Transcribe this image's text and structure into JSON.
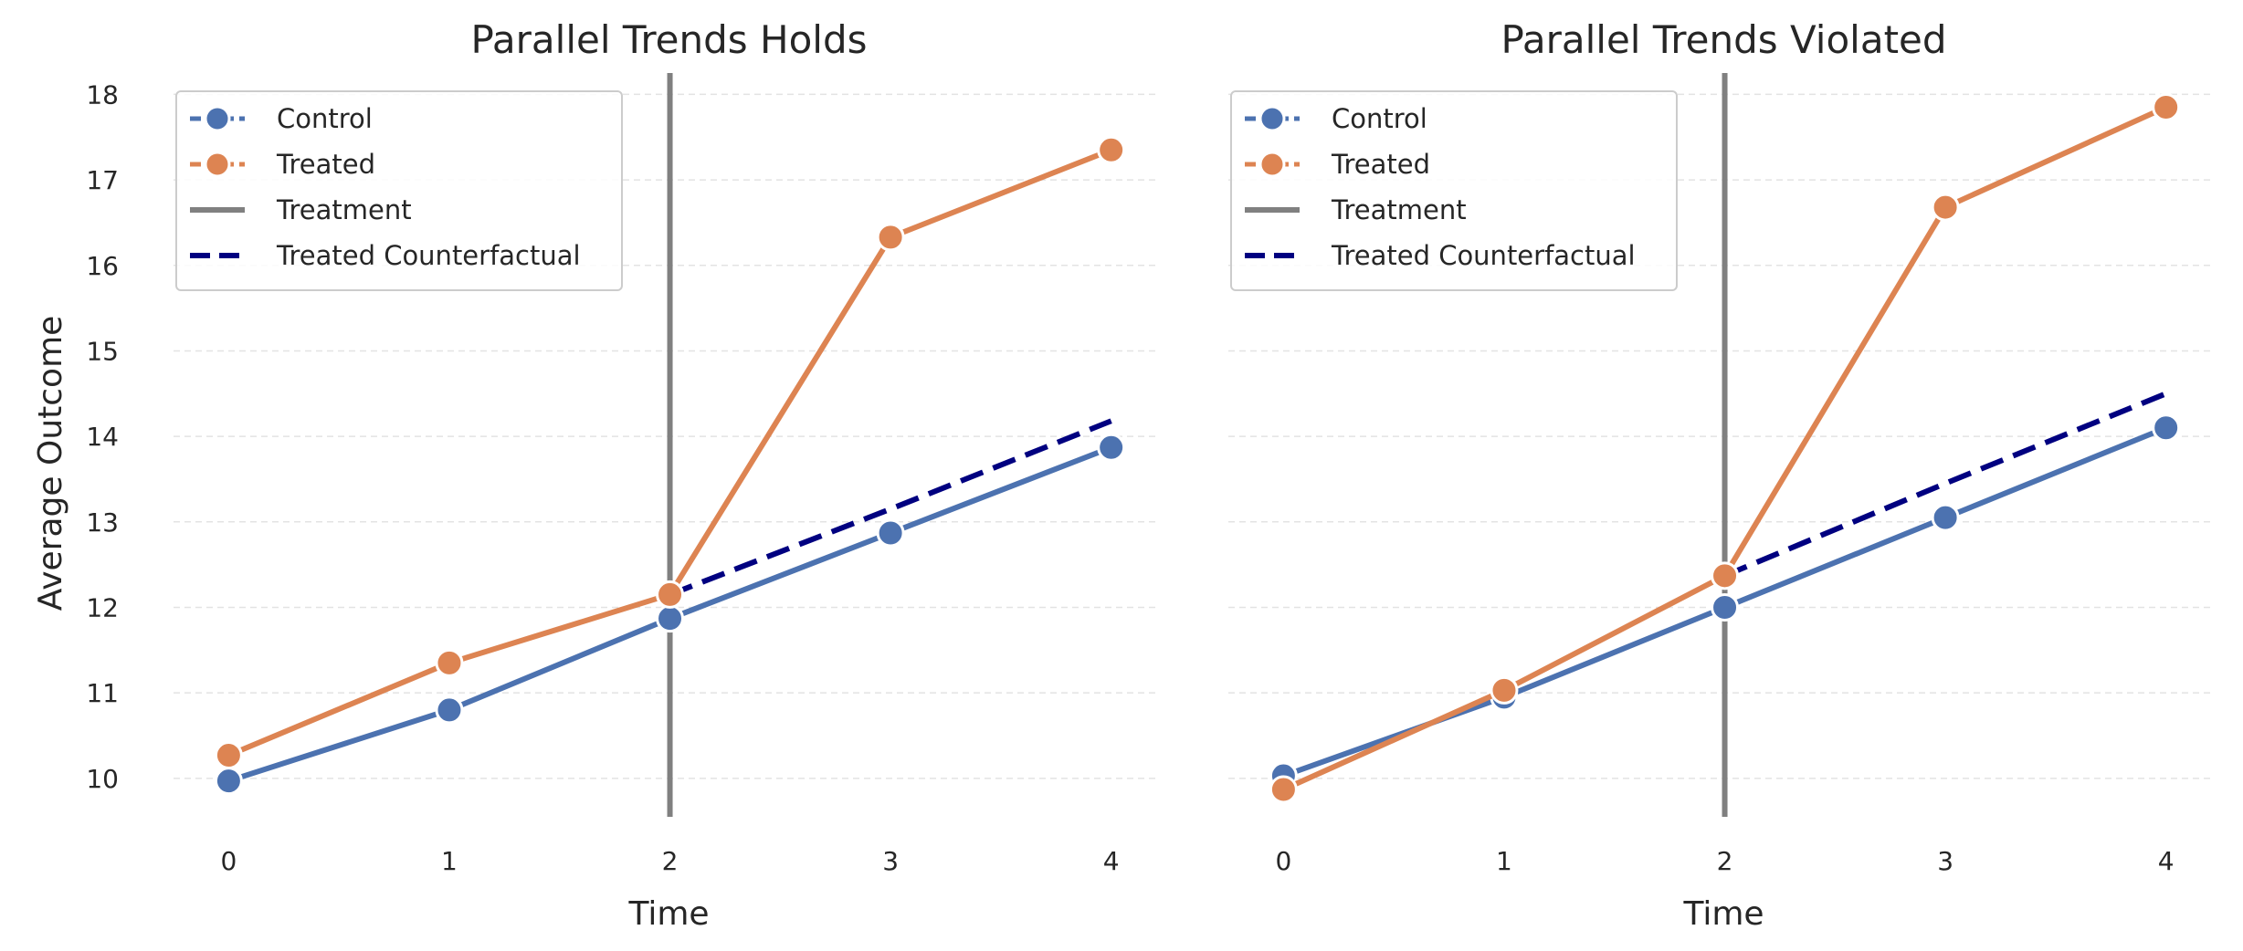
{
  "chart_data": [
    {
      "type": "line",
      "title": "Parallel Trends Holds",
      "xlabel": "Time",
      "ylabel": "Average Outcome",
      "x": [
        0,
        1,
        2,
        3,
        4
      ],
      "xlim": [
        -0.25,
        4.2
      ],
      "ylim": [
        9.55,
        18.25
      ],
      "yticks": [
        10,
        11,
        12,
        13,
        14,
        15,
        16,
        17,
        18
      ],
      "grid": "horizontal dashed",
      "legend_position": "top-left",
      "treatment_time": 2,
      "series": [
        {
          "name": "Control",
          "style": "line-marker",
          "color": "#4c72b0",
          "x": [
            0,
            1,
            2,
            3,
            4
          ],
          "values": [
            9.97,
            10.8,
            11.87,
            12.87,
            13.87
          ]
        },
        {
          "name": "Treated",
          "style": "line-marker",
          "color": "#dd8452",
          "x": [
            0,
            1,
            2,
            3,
            4
          ],
          "values": [
            10.27,
            11.35,
            12.15,
            16.33,
            17.35
          ]
        },
        {
          "name": "Treatment",
          "style": "vline",
          "color": "#808080",
          "x": 2
        },
        {
          "name": "Treated Counterfactual",
          "style": "dashed",
          "color": "#000080",
          "x": [
            2,
            3,
            4
          ],
          "values": [
            12.15,
            13.15,
            14.18
          ]
        }
      ]
    },
    {
      "type": "line",
      "title": "Parallel Trends Violated",
      "xlabel": "Time",
      "ylabel": "",
      "x": [
        0,
        1,
        2,
        3,
        4
      ],
      "xlim": [
        -0.25,
        4.2
      ],
      "ylim": [
        9.55,
        18.25
      ],
      "yticks": [
        10,
        11,
        12,
        13,
        14,
        15,
        16,
        17,
        18
      ],
      "grid": "horizontal dashed",
      "legend_position": "top-left",
      "treatment_time": 2,
      "series": [
        {
          "name": "Control",
          "style": "line-marker",
          "color": "#4c72b0",
          "x": [
            0,
            1,
            2,
            3,
            4
          ],
          "values": [
            10.03,
            10.95,
            12.0,
            13.05,
            14.1
          ]
        },
        {
          "name": "Treated",
          "style": "line-marker",
          "color": "#dd8452",
          "x": [
            0,
            1,
            2,
            3,
            4
          ],
          "values": [
            9.87,
            11.03,
            12.37,
            16.68,
            17.85
          ]
        },
        {
          "name": "Treatment",
          "style": "vline",
          "color": "#808080",
          "x": 2
        },
        {
          "name": "Treated Counterfactual",
          "style": "dashed",
          "color": "#000080",
          "x": [
            2,
            3,
            4
          ],
          "values": [
            12.37,
            13.45,
            14.5
          ]
        }
      ]
    }
  ]
}
